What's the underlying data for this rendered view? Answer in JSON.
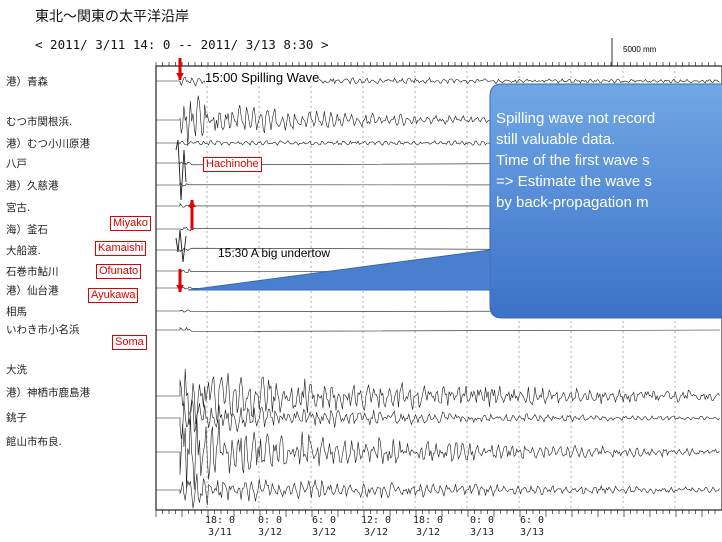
{
  "chart_data": {
    "type": "line",
    "title": "東北〜関東の太平洋沿岸",
    "subtitle": "< 2011/ 3/11 14: 0 -- 2011/ 3/13  8:30 >",
    "scale_label": "5000 mm",
    "x_tick_labels": [
      {
        "time": "18: 0",
        "date": "3/11"
      },
      {
        "time": "0: 0",
        "date": "3/12"
      },
      {
        "time": "6: 0",
        "date": "3/12"
      },
      {
        "time": "12: 0",
        "date": "3/12"
      },
      {
        "time": "18: 0",
        "date": "3/12"
      },
      {
        "time": "0: 0",
        "date": "3/13"
      },
      {
        "time": "6: 0",
        "date": "3/13"
      }
    ],
    "stations": [
      "港）青森",
      "むつ市関根浜.",
      "港）むつ小川原港",
      "八戸",
      "港）久慈港",
      "宮古.",
      "海）釜石",
      "大船渡.",
      "石巻市鮎川",
      "港）仙台港",
      "相馬",
      "いわき市小名浜",
      "大洗",
      "港）神栖市鹿島港",
      "銚子",
      "館山市布良."
    ],
    "station_tags": [
      "Hachinohe",
      "Miyako",
      "Kamaishi",
      "Ofunato",
      "Ayukawa",
      "Soma"
    ]
  },
  "annotations": {
    "spilling": "15:00 Spilling Wave",
    "undertow": "15:30 A big undertow"
  },
  "callout": {
    "lines": [
      "Spilling wave not record",
      "still valuable data.",
      "Time of the first wave s",
      "=> Estimate the wave s",
      "by back-propagation m"
    ]
  },
  "colors": {
    "trace": "#1a1a1a",
    "grid": "#9a9a9a",
    "annotation": "#e00000",
    "callout_top": "#6aa3e3",
    "callout_bottom": "#3f76c8"
  }
}
